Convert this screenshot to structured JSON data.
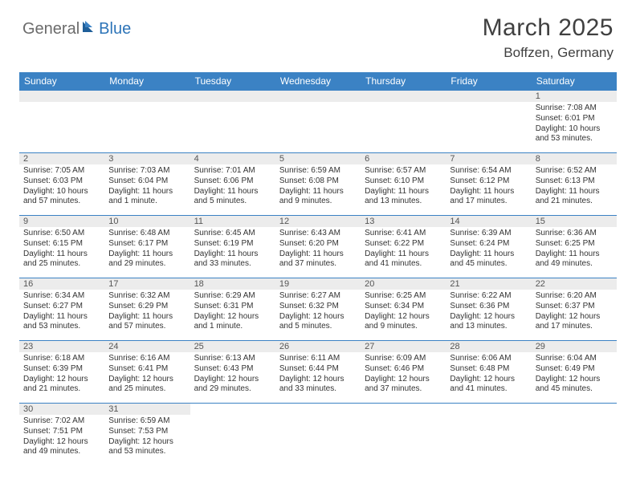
{
  "brand": {
    "part1": "General",
    "part2": "Blue"
  },
  "title": "March 2025",
  "location": "Boffzen, Germany",
  "colors": {
    "header_bg": "#3b82c4",
    "header_text": "#ffffff",
    "daynum_bg": "#ececec",
    "daynum_text": "#555555",
    "body_text": "#333333",
    "rule": "#3b82c4",
    "title_text": "#404040",
    "brand_gray": "#6b6b6b",
    "brand_blue": "#2d74b8"
  },
  "weekdays": [
    "Sunday",
    "Monday",
    "Tuesday",
    "Wednesday",
    "Thursday",
    "Friday",
    "Saturday"
  ],
  "weeks": [
    [
      null,
      null,
      null,
      null,
      null,
      null,
      {
        "n": "1",
        "sunrise": "Sunrise: 7:08 AM",
        "sunset": "Sunset: 6:01 PM",
        "day": "Daylight: 10 hours and 53 minutes."
      }
    ],
    [
      {
        "n": "2",
        "sunrise": "Sunrise: 7:05 AM",
        "sunset": "Sunset: 6:03 PM",
        "day": "Daylight: 10 hours and 57 minutes."
      },
      {
        "n": "3",
        "sunrise": "Sunrise: 7:03 AM",
        "sunset": "Sunset: 6:04 PM",
        "day": "Daylight: 11 hours and 1 minute."
      },
      {
        "n": "4",
        "sunrise": "Sunrise: 7:01 AM",
        "sunset": "Sunset: 6:06 PM",
        "day": "Daylight: 11 hours and 5 minutes."
      },
      {
        "n": "5",
        "sunrise": "Sunrise: 6:59 AM",
        "sunset": "Sunset: 6:08 PM",
        "day": "Daylight: 11 hours and 9 minutes."
      },
      {
        "n": "6",
        "sunrise": "Sunrise: 6:57 AM",
        "sunset": "Sunset: 6:10 PM",
        "day": "Daylight: 11 hours and 13 minutes."
      },
      {
        "n": "7",
        "sunrise": "Sunrise: 6:54 AM",
        "sunset": "Sunset: 6:12 PM",
        "day": "Daylight: 11 hours and 17 minutes."
      },
      {
        "n": "8",
        "sunrise": "Sunrise: 6:52 AM",
        "sunset": "Sunset: 6:13 PM",
        "day": "Daylight: 11 hours and 21 minutes."
      }
    ],
    [
      {
        "n": "9",
        "sunrise": "Sunrise: 6:50 AM",
        "sunset": "Sunset: 6:15 PM",
        "day": "Daylight: 11 hours and 25 minutes."
      },
      {
        "n": "10",
        "sunrise": "Sunrise: 6:48 AM",
        "sunset": "Sunset: 6:17 PM",
        "day": "Daylight: 11 hours and 29 minutes."
      },
      {
        "n": "11",
        "sunrise": "Sunrise: 6:45 AM",
        "sunset": "Sunset: 6:19 PM",
        "day": "Daylight: 11 hours and 33 minutes."
      },
      {
        "n": "12",
        "sunrise": "Sunrise: 6:43 AM",
        "sunset": "Sunset: 6:20 PM",
        "day": "Daylight: 11 hours and 37 minutes."
      },
      {
        "n": "13",
        "sunrise": "Sunrise: 6:41 AM",
        "sunset": "Sunset: 6:22 PM",
        "day": "Daylight: 11 hours and 41 minutes."
      },
      {
        "n": "14",
        "sunrise": "Sunrise: 6:39 AM",
        "sunset": "Sunset: 6:24 PM",
        "day": "Daylight: 11 hours and 45 minutes."
      },
      {
        "n": "15",
        "sunrise": "Sunrise: 6:36 AM",
        "sunset": "Sunset: 6:25 PM",
        "day": "Daylight: 11 hours and 49 minutes."
      }
    ],
    [
      {
        "n": "16",
        "sunrise": "Sunrise: 6:34 AM",
        "sunset": "Sunset: 6:27 PM",
        "day": "Daylight: 11 hours and 53 minutes."
      },
      {
        "n": "17",
        "sunrise": "Sunrise: 6:32 AM",
        "sunset": "Sunset: 6:29 PM",
        "day": "Daylight: 11 hours and 57 minutes."
      },
      {
        "n": "18",
        "sunrise": "Sunrise: 6:29 AM",
        "sunset": "Sunset: 6:31 PM",
        "day": "Daylight: 12 hours and 1 minute."
      },
      {
        "n": "19",
        "sunrise": "Sunrise: 6:27 AM",
        "sunset": "Sunset: 6:32 PM",
        "day": "Daylight: 12 hours and 5 minutes."
      },
      {
        "n": "20",
        "sunrise": "Sunrise: 6:25 AM",
        "sunset": "Sunset: 6:34 PM",
        "day": "Daylight: 12 hours and 9 minutes."
      },
      {
        "n": "21",
        "sunrise": "Sunrise: 6:22 AM",
        "sunset": "Sunset: 6:36 PM",
        "day": "Daylight: 12 hours and 13 minutes."
      },
      {
        "n": "22",
        "sunrise": "Sunrise: 6:20 AM",
        "sunset": "Sunset: 6:37 PM",
        "day": "Daylight: 12 hours and 17 minutes."
      }
    ],
    [
      {
        "n": "23",
        "sunrise": "Sunrise: 6:18 AM",
        "sunset": "Sunset: 6:39 PM",
        "day": "Daylight: 12 hours and 21 minutes."
      },
      {
        "n": "24",
        "sunrise": "Sunrise: 6:16 AM",
        "sunset": "Sunset: 6:41 PM",
        "day": "Daylight: 12 hours and 25 minutes."
      },
      {
        "n": "25",
        "sunrise": "Sunrise: 6:13 AM",
        "sunset": "Sunset: 6:43 PM",
        "day": "Daylight: 12 hours and 29 minutes."
      },
      {
        "n": "26",
        "sunrise": "Sunrise: 6:11 AM",
        "sunset": "Sunset: 6:44 PM",
        "day": "Daylight: 12 hours and 33 minutes."
      },
      {
        "n": "27",
        "sunrise": "Sunrise: 6:09 AM",
        "sunset": "Sunset: 6:46 PM",
        "day": "Daylight: 12 hours and 37 minutes."
      },
      {
        "n": "28",
        "sunrise": "Sunrise: 6:06 AM",
        "sunset": "Sunset: 6:48 PM",
        "day": "Daylight: 12 hours and 41 minutes."
      },
      {
        "n": "29",
        "sunrise": "Sunrise: 6:04 AM",
        "sunset": "Sunset: 6:49 PM",
        "day": "Daylight: 12 hours and 45 minutes."
      }
    ],
    [
      {
        "n": "30",
        "sunrise": "Sunrise: 7:02 AM",
        "sunset": "Sunset: 7:51 PM",
        "day": "Daylight: 12 hours and 49 minutes."
      },
      {
        "n": "31",
        "sunrise": "Sunrise: 6:59 AM",
        "sunset": "Sunset: 7:53 PM",
        "day": "Daylight: 12 hours and 53 minutes."
      },
      null,
      null,
      null,
      null,
      null
    ]
  ]
}
